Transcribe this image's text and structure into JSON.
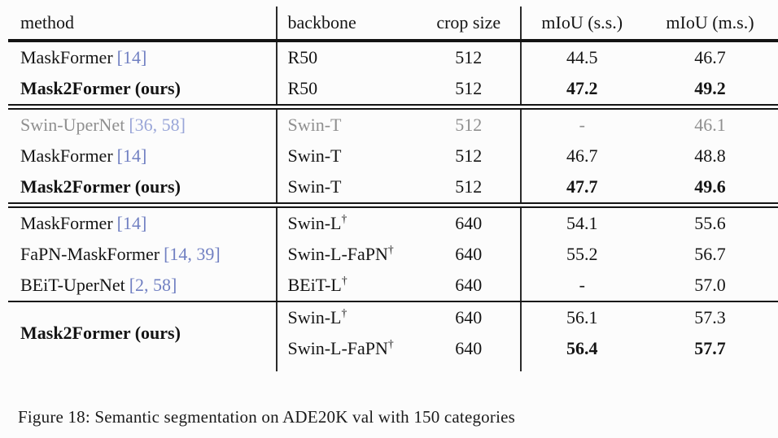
{
  "table": {
    "headers": {
      "method": "method",
      "backbone": "backbone",
      "crop_size": "crop size",
      "miou_ss": "mIoU (s.s.)",
      "miou_ms": "mIoU (m.s.)"
    },
    "rows": [
      {
        "method": "MaskFormer",
        "cite": "[14]",
        "backbone": "R50",
        "sup": "",
        "crop": "512",
        "ss": "44.5",
        "ms": "46.7"
      },
      {
        "method": "Mask2Former (ours)",
        "cite": "",
        "backbone": "R50",
        "sup": "",
        "crop": "512",
        "ss": "47.2",
        "ms": "49.2"
      },
      {
        "method": "Swin-UperNet",
        "cite": "[36, 58]",
        "backbone": "Swin-T",
        "sup": "",
        "crop": "512",
        "ss": "-",
        "ms": "46.1"
      },
      {
        "method": "MaskFormer",
        "cite": "[14]",
        "backbone": "Swin-T",
        "sup": "",
        "crop": "512",
        "ss": "46.7",
        "ms": "48.8"
      },
      {
        "method": "Mask2Former (ours)",
        "cite": "",
        "backbone": "Swin-T",
        "sup": "",
        "crop": "512",
        "ss": "47.7",
        "ms": "49.6"
      },
      {
        "method": "MaskFormer",
        "cite": "[14]",
        "backbone": "Swin-L",
        "sup": "†",
        "crop": "640",
        "ss": "54.1",
        "ms": "55.6"
      },
      {
        "method": "FaPN-MaskFormer",
        "cite": "[14, 39]",
        "backbone": "Swin-L-FaPN",
        "sup": "†",
        "crop": "640",
        "ss": "55.2",
        "ms": "56.7"
      },
      {
        "method": "BEiT-UperNet",
        "cite": "[2, 58]",
        "backbone": "BEiT-L",
        "sup": "†",
        "crop": "640",
        "ss": "-",
        "ms": "57.0"
      },
      {
        "method": "Mask2Former (ours)",
        "cite": "",
        "backbone": "Swin-L",
        "sup": "†",
        "crop": "640",
        "ss": "56.1",
        "ms": "57.3"
      },
      {
        "method": "",
        "cite": "",
        "backbone": "Swin-L-FaPN",
        "sup": "†",
        "crop": "640",
        "ss": "56.4",
        "ms": "57.7"
      }
    ]
  },
  "caption": "Figure 18: Semantic segmentation on ADE20K val with 150 categories",
  "chart_data": {
    "type": "table",
    "title": "Semantic segmentation on ADE20K val with 150 categories",
    "columns": [
      "method",
      "backbone",
      "crop size",
      "mIoU (s.s.)",
      "mIoU (m.s.)"
    ],
    "groups": [
      [
        {
          "method": "MaskFormer [14]",
          "backbone": "R50",
          "crop_size": 512,
          "miou_ss": 44.5,
          "miou_ms": 46.7
        },
        {
          "method": "Mask2Former (ours)",
          "backbone": "R50",
          "crop_size": 512,
          "miou_ss": 47.2,
          "miou_ms": 49.2
        }
      ],
      [
        {
          "method": "Swin-UperNet [36, 58]",
          "backbone": "Swin-T",
          "crop_size": 512,
          "miou_ss": null,
          "miou_ms": 46.1
        },
        {
          "method": "MaskFormer [14]",
          "backbone": "Swin-T",
          "crop_size": 512,
          "miou_ss": 46.7,
          "miou_ms": 48.8
        },
        {
          "method": "Mask2Former (ours)",
          "backbone": "Swin-T",
          "crop_size": 512,
          "miou_ss": 47.7,
          "miou_ms": 49.6
        }
      ],
      [
        {
          "method": "MaskFormer [14]",
          "backbone": "Swin-L†",
          "crop_size": 640,
          "miou_ss": 54.1,
          "miou_ms": 55.6
        },
        {
          "method": "FaPN-MaskFormer [14, 39]",
          "backbone": "Swin-L-FaPN†",
          "crop_size": 640,
          "miou_ss": 55.2,
          "miou_ms": 56.7
        },
        {
          "method": "BEiT-UperNet [2, 58]",
          "backbone": "BEiT-L†",
          "crop_size": 640,
          "miou_ss": null,
          "miou_ms": 57.0
        }
      ],
      [
        {
          "method": "Mask2Former (ours)",
          "backbone": "Swin-L†",
          "crop_size": 640,
          "miou_ss": 56.1,
          "miou_ms": 57.3
        },
        {
          "method": "Mask2Former (ours)",
          "backbone": "Swin-L-FaPN†",
          "crop_size": 640,
          "miou_ss": 56.4,
          "miou_ms": 57.7
        }
      ]
    ]
  },
  "colors": {
    "citation": "#7180c2",
    "muted_row": "#8f8f8f",
    "rule": "#151515"
  }
}
